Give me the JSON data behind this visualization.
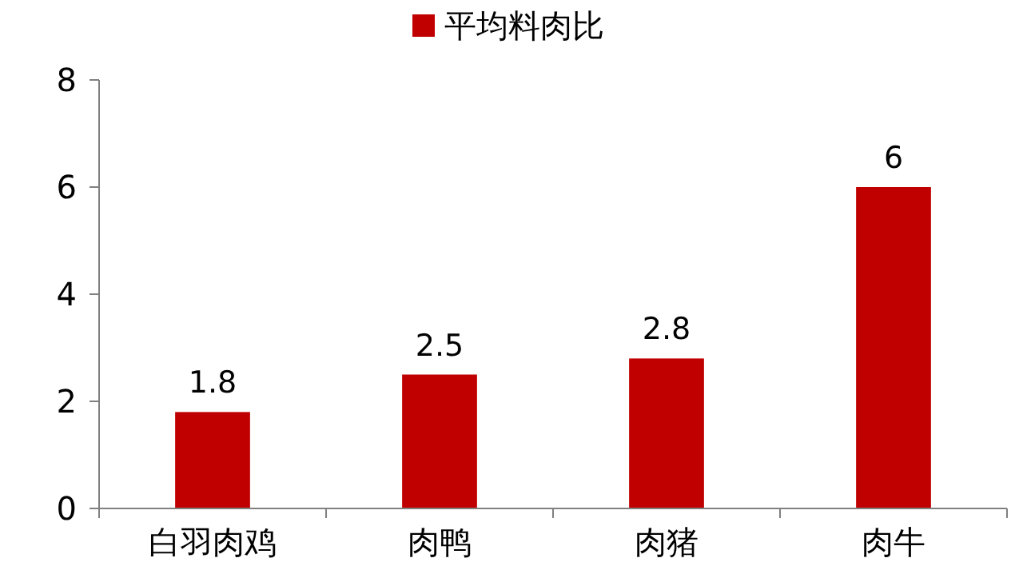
{
  "chart_data": {
    "type": "bar",
    "categories": [
      "白羽肉鸡",
      "肉鸭",
      "肉猪",
      "肉牛"
    ],
    "series": [
      {
        "name": "平均料肉比",
        "color": "#c00000",
        "values": [
          1.8,
          2.5,
          2.8,
          6
        ]
      }
    ],
    "ylim": [
      0,
      8
    ],
    "yticks": [
      0,
      2,
      4,
      6,
      8
    ],
    "data_labels": true,
    "legend": "top",
    "grid": false
  }
}
